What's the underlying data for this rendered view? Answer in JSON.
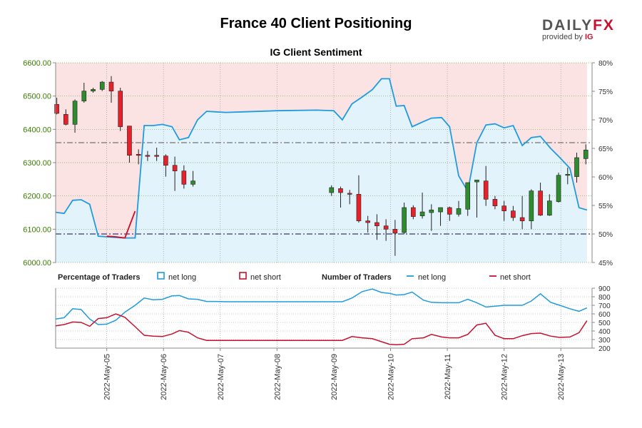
{
  "header": {
    "title": "France 40 Client Positioning"
  },
  "brand": {
    "logo_main": "DAILY",
    "logo_accent": "FX",
    "provided_by": "provided by",
    "partner": "IG"
  },
  "colors": {
    "long": "#1f9be0",
    "short": "#c8102e",
    "up_candle": "#2e8b2e",
    "down_candle": "#e8202a",
    "price_axis": "#3a7d00",
    "long_fill": "#e3f3fb",
    "short_fill": "#fbe3e3"
  },
  "chart_data": [
    {
      "type": "candlestick",
      "title": "IG Client Sentiment",
      "price_ticks": [
        "6000.00",
        "6100.00",
        "6200.00",
        "6300.00",
        "6400.00",
        "6500.00",
        "6600.00"
      ],
      "pct_ticks": [
        "45%",
        "50%",
        "55%",
        "60%",
        "65%",
        "70%",
        "75%",
        "80%"
      ],
      "ylim_price": [
        6000,
        6600
      ],
      "ylim_pct": [
        45,
        80
      ],
      "x_range": [
        4.1,
        13.55
      ],
      "x_ticks": [
        {
          "x": 5,
          "label": "2022-May-05"
        },
        {
          "x": 6,
          "label": "2022-May-06"
        },
        {
          "x": 7,
          "label": "2022-May-07"
        },
        {
          "x": 8,
          "label": "2022-May-08"
        },
        {
          "x": 9,
          "label": "2022-May-09"
        },
        {
          "x": 10,
          "label": "2022-May-10"
        },
        {
          "x": 11,
          "label": "2022-May-11"
        },
        {
          "x": 12,
          "label": "2022-May-12"
        },
        {
          "x": 13,
          "label": "2022-May-13"
        }
      ],
      "candles": [
        {
          "t": 4.12,
          "o": 6475,
          "h": 6495,
          "l": 6445,
          "c": 6448
        },
        {
          "t": 4.28,
          "o": 6445,
          "h": 6460,
          "l": 6412,
          "c": 6415
        },
        {
          "t": 4.44,
          "o": 6415,
          "h": 6490,
          "l": 6390,
          "c": 6485
        },
        {
          "t": 4.6,
          "o": 6485,
          "h": 6540,
          "l": 6480,
          "c": 6515
        },
        {
          "t": 4.76,
          "o": 6515,
          "h": 6525,
          "l": 6510,
          "c": 6520
        },
        {
          "t": 4.92,
          "o": 6520,
          "h": 6545,
          "l": 6515,
          "c": 6542
        },
        {
          "t": 5.08,
          "o": 6542,
          "h": 6560,
          "l": 6480,
          "c": 6515
        },
        {
          "t": 5.24,
          "o": 6515,
          "h": 6525,
          "l": 6395,
          "c": 6408
        },
        {
          "t": 5.4,
          "o": 6410,
          "h": 6410,
          "l": 6300,
          "c": 6322
        },
        {
          "t": 5.56,
          "o": 6325,
          "h": 6340,
          "l": 6295,
          "c": 6322
        },
        {
          "t": 5.72,
          "o": 6322,
          "h": 6335,
          "l": 6305,
          "c": 6320
        },
        {
          "t": 5.88,
          "o": 6322,
          "h": 6345,
          "l": 6305,
          "c": 6320
        },
        {
          "t": 6.04,
          "o": 6320,
          "h": 6325,
          "l": 6258,
          "c": 6292
        },
        {
          "t": 6.2,
          "o": 6292,
          "h": 6318,
          "l": 6215,
          "c": 6275
        },
        {
          "t": 6.36,
          "o": 6275,
          "h": 6292,
          "l": 6222,
          "c": 6235
        },
        {
          "t": 6.52,
          "o": 6235,
          "h": 6275,
          "l": 6228,
          "c": 6245
        },
        {
          "t": 8.96,
          "o": 6210,
          "h": 6232,
          "l": 6200,
          "c": 6225
        },
        {
          "t": 9.12,
          "o": 6222,
          "h": 6228,
          "l": 6165,
          "c": 6210
        },
        {
          "t": 9.28,
          "o": 6208,
          "h": 6218,
          "l": 6175,
          "c": 6205
        },
        {
          "t": 9.44,
          "o": 6205,
          "h": 6262,
          "l": 6120,
          "c": 6125
        },
        {
          "t": 9.6,
          "o": 6125,
          "h": 6140,
          "l": 6090,
          "c": 6120
        },
        {
          "t": 9.76,
          "o": 6120,
          "h": 6145,
          "l": 6068,
          "c": 6110
        },
        {
          "t": 9.92,
          "o": 6110,
          "h": 6130,
          "l": 6065,
          "c": 6100
        },
        {
          "t": 10.08,
          "o": 6100,
          "h": 6128,
          "l": 6020,
          "c": 6088
        },
        {
          "t": 10.24,
          "o": 6090,
          "h": 6180,
          "l": 6085,
          "c": 6165
        },
        {
          "t": 10.4,
          "o": 6165,
          "h": 6172,
          "l": 6130,
          "c": 6138
        },
        {
          "t": 10.56,
          "o": 6140,
          "h": 6210,
          "l": 6132,
          "c": 6152
        },
        {
          "t": 10.72,
          "o": 6150,
          "h": 6175,
          "l": 6095,
          "c": 6158
        },
        {
          "t": 10.88,
          "o": 6152,
          "h": 6165,
          "l": 6110,
          "c": 6165
        },
        {
          "t": 11.04,
          "o": 6165,
          "h": 6168,
          "l": 6125,
          "c": 6145
        },
        {
          "t": 11.2,
          "o": 6145,
          "h": 6185,
          "l": 6138,
          "c": 6162
        },
        {
          "t": 11.36,
          "o": 6160,
          "h": 6240,
          "l": 6140,
          "c": 6240
        },
        {
          "t": 11.52,
          "o": 6242,
          "h": 6245,
          "l": 6135,
          "c": 6248
        },
        {
          "t": 11.68,
          "o": 6245,
          "h": 6290,
          "l": 6170,
          "c": 6190
        },
        {
          "t": 11.84,
          "o": 6190,
          "h": 6200,
          "l": 6160,
          "c": 6170
        },
        {
          "t": 12.0,
          "o": 6170,
          "h": 6185,
          "l": 6125,
          "c": 6155
        },
        {
          "t": 12.16,
          "o": 6155,
          "h": 6170,
          "l": 6125,
          "c": 6135
        },
        {
          "t": 12.32,
          "o": 6135,
          "h": 6200,
          "l": 6100,
          "c": 6125
        },
        {
          "t": 12.48,
          "o": 6125,
          "h": 6220,
          "l": 6100,
          "c": 6215
        },
        {
          "t": 12.64,
          "o": 6215,
          "h": 6240,
          "l": 6140,
          "c": 6142
        },
        {
          "t": 12.8,
          "o": 6142,
          "h": 6205,
          "l": 6140,
          "c": 6185
        },
        {
          "t": 12.96,
          "o": 6183,
          "h": 6270,
          "l": 6180,
          "c": 6262
        },
        {
          "t": 13.12,
          "o": 6262,
          "h": 6285,
          "l": 6235,
          "c": 6265
        },
        {
          "t": 13.28,
          "o": 6258,
          "h": 6330,
          "l": 6240,
          "c": 6315
        },
        {
          "t": 13.44,
          "o": 6312,
          "h": 6355,
          "l": 6295,
          "c": 6338
        }
      ],
      "sentiment_long_pct": {
        "t": [
          4.1,
          4.25,
          4.4,
          4.55,
          4.7,
          4.85,
          5.0,
          5.16,
          5.32,
          5.5,
          5.66,
          5.82,
          5.98,
          6.15,
          6.28,
          6.44,
          6.6,
          6.76,
          6.92,
          7.1,
          7.4,
          8.0,
          8.7,
          9.0,
          9.15,
          9.32,
          9.5,
          9.68,
          9.84,
          9.98,
          10.1,
          10.24,
          10.38,
          10.58,
          10.72,
          10.9,
          11.04,
          11.2,
          11.36,
          11.52,
          11.68,
          11.84,
          12.0,
          12.16,
          12.32,
          12.48,
          12.64,
          12.82,
          12.98,
          13.16,
          13.32,
          13.46
        ],
        "v": [
          53.8,
          53.6,
          55.9,
          56.0,
          55.2,
          49.6,
          49.5,
          49.4,
          49.3,
          49.3,
          69.0,
          69.0,
          69.2,
          68.8,
          66.5,
          66.9,
          70.0,
          71.5,
          71.4,
          71.3,
          71.4,
          71.6,
          71.7,
          71.6,
          70.0,
          72.8,
          74.0,
          75.3,
          77.2,
          77.2,
          72.4,
          72.5,
          68.8,
          69.7,
          70.3,
          70.4,
          68.8,
          60.2,
          57.5,
          66.0,
          69.1,
          69.3,
          68.6,
          69.0,
          65.5,
          66.9,
          67.1,
          65.0,
          63.4,
          61.5,
          54.6,
          54.2
        ],
        "short_marker_region": [
          5.0,
          5.5
        ]
      },
      "sentiment_short_pct": {
        "t": [
          5.0,
          5.16,
          5.32,
          5.5
        ],
        "v": [
          49.6,
          49.5,
          49.3,
          54.0
        ]
      },
      "reference_lines": [
        {
          "axis": "price",
          "value": 6360,
          "style": "dashdot"
        },
        {
          "axis": "pct",
          "value": 50,
          "style": "dashdot"
        }
      ]
    },
    {
      "type": "line",
      "legend": {
        "percentage_label": "Percentage of Traders",
        "number_label": "Number of Traders",
        "net_long": "net long",
        "net_short": "net short"
      },
      "y_ticks": [
        "200",
        "300",
        "400",
        "500",
        "600",
        "700",
        "800",
        "900"
      ],
      "ylim": [
        200,
        900
      ],
      "series": [
        {
          "name": "net long",
          "t": [
            4.1,
            4.25,
            4.4,
            4.55,
            4.7,
            4.85,
            5.0,
            5.16,
            5.32,
            5.5,
            5.66,
            5.82,
            5.98,
            6.15,
            6.28,
            6.44,
            6.6,
            6.76,
            6.92,
            7.1,
            7.4,
            8.0,
            8.7,
            9.0,
            9.15,
            9.32,
            9.5,
            9.68,
            9.84,
            9.98,
            10.1,
            10.24,
            10.38,
            10.58,
            10.72,
            10.9,
            11.04,
            11.2,
            11.36,
            11.52,
            11.68,
            11.84,
            12.0,
            12.16,
            12.32,
            12.48,
            12.64,
            12.82,
            12.98,
            13.16,
            13.32,
            13.46
          ],
          "values": [
            540,
            555,
            660,
            650,
            540,
            475,
            480,
            525,
            620,
            700,
            785,
            765,
            770,
            810,
            815,
            775,
            770,
            745,
            745,
            742,
            742,
            742,
            742,
            742,
            742,
            785,
            860,
            890,
            850,
            840,
            820,
            825,
            855,
            760,
            735,
            730,
            730,
            730,
            770,
            730,
            680,
            690,
            700,
            700,
            700,
            750,
            835,
            735,
            700,
            660,
            630,
            670
          ]
        },
        {
          "name": "net short",
          "t": [
            4.1,
            4.25,
            4.4,
            4.55,
            4.7,
            4.85,
            5.0,
            5.16,
            5.32,
            5.5,
            5.66,
            5.82,
            5.98,
            6.15,
            6.28,
            6.44,
            6.6,
            6.76,
            6.92,
            7.1,
            7.4,
            8.0,
            8.7,
            9.0,
            9.15,
            9.32,
            9.5,
            9.68,
            9.84,
            9.98,
            10.1,
            10.24,
            10.38,
            10.58,
            10.72,
            10.9,
            11.04,
            11.2,
            11.36,
            11.52,
            11.68,
            11.84,
            12.0,
            12.16,
            12.32,
            12.48,
            12.64,
            12.82,
            12.98,
            13.16,
            13.32,
            13.46
          ],
          "values": [
            460,
            475,
            505,
            500,
            455,
            545,
            555,
            600,
            560,
            450,
            350,
            340,
            335,
            365,
            405,
            385,
            320,
            290,
            290,
            290,
            290,
            290,
            290,
            290,
            290,
            335,
            320,
            310,
            275,
            245,
            240,
            245,
            310,
            320,
            360,
            330,
            320,
            320,
            360,
            470,
            490,
            350,
            310,
            310,
            345,
            370,
            375,
            340,
            325,
            330,
            380,
            520
          ]
        }
      ]
    }
  ]
}
